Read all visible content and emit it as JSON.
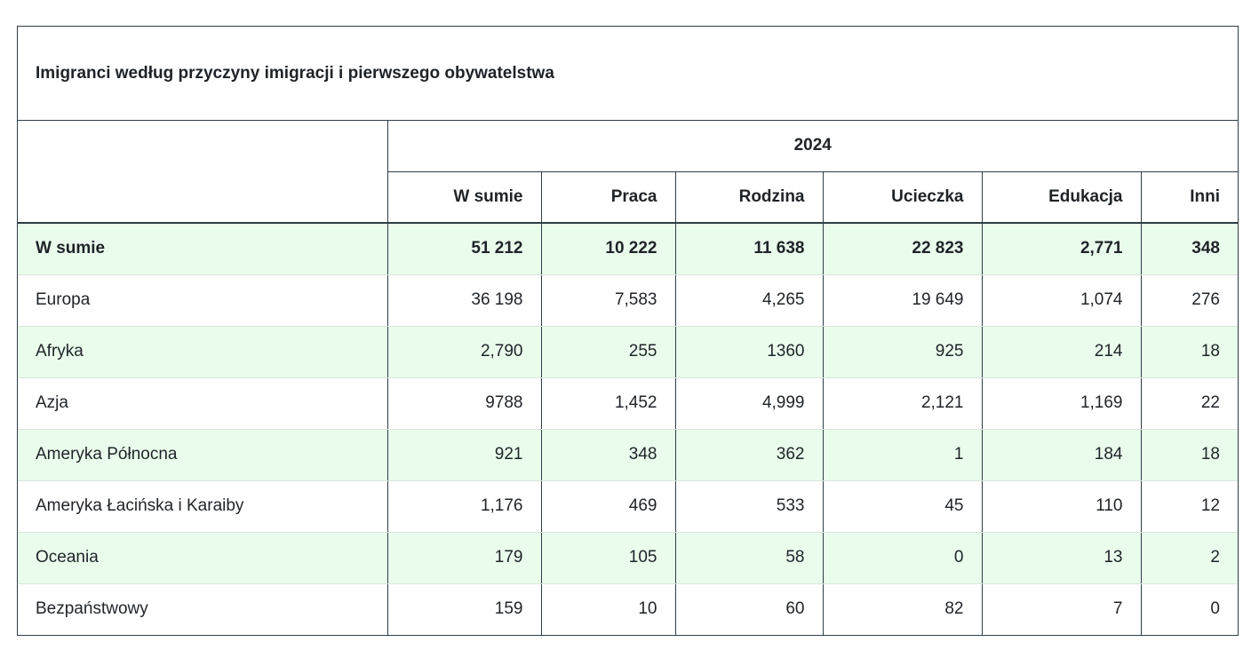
{
  "table": {
    "title": "Imigranci według przyczyny imigracji i pierwszego obywatelstwa",
    "year": "2024",
    "columns": [
      "W sumie",
      "Praca",
      "Rodzina",
      "Ucieczka",
      "Edukacja",
      "Inni"
    ],
    "rows": [
      {
        "label": "W sumie",
        "values": [
          "51 212",
          "10 222",
          "11 638",
          "22 823",
          "2,771",
          "348"
        ]
      },
      {
        "label": "Europa",
        "values": [
          "36 198",
          "7,583",
          "4,265",
          "19 649",
          "1,074",
          "276"
        ]
      },
      {
        "label": "Afryka",
        "values": [
          "2,790",
          "255",
          "1360",
          "925",
          "214",
          "18"
        ]
      },
      {
        "label": "Azja",
        "values": [
          "9788",
          "1,452",
          "4,999",
          "2,121",
          "1,169",
          "22"
        ]
      },
      {
        "label": "Ameryka Północna",
        "values": [
          "921",
          "348",
          "362",
          "1",
          "184",
          "18"
        ]
      },
      {
        "label": "Ameryka Łacińska i Karaiby",
        "values": [
          "1,176",
          "469",
          "533",
          "45",
          "110",
          "12"
        ]
      },
      {
        "label": "Oceania",
        "values": [
          "179",
          "105",
          "58",
          "0",
          "13",
          "2"
        ]
      },
      {
        "label": "Bezpaństwowy",
        "values": [
          "159",
          "10",
          "60",
          "82",
          "7",
          "0"
        ]
      }
    ]
  }
}
